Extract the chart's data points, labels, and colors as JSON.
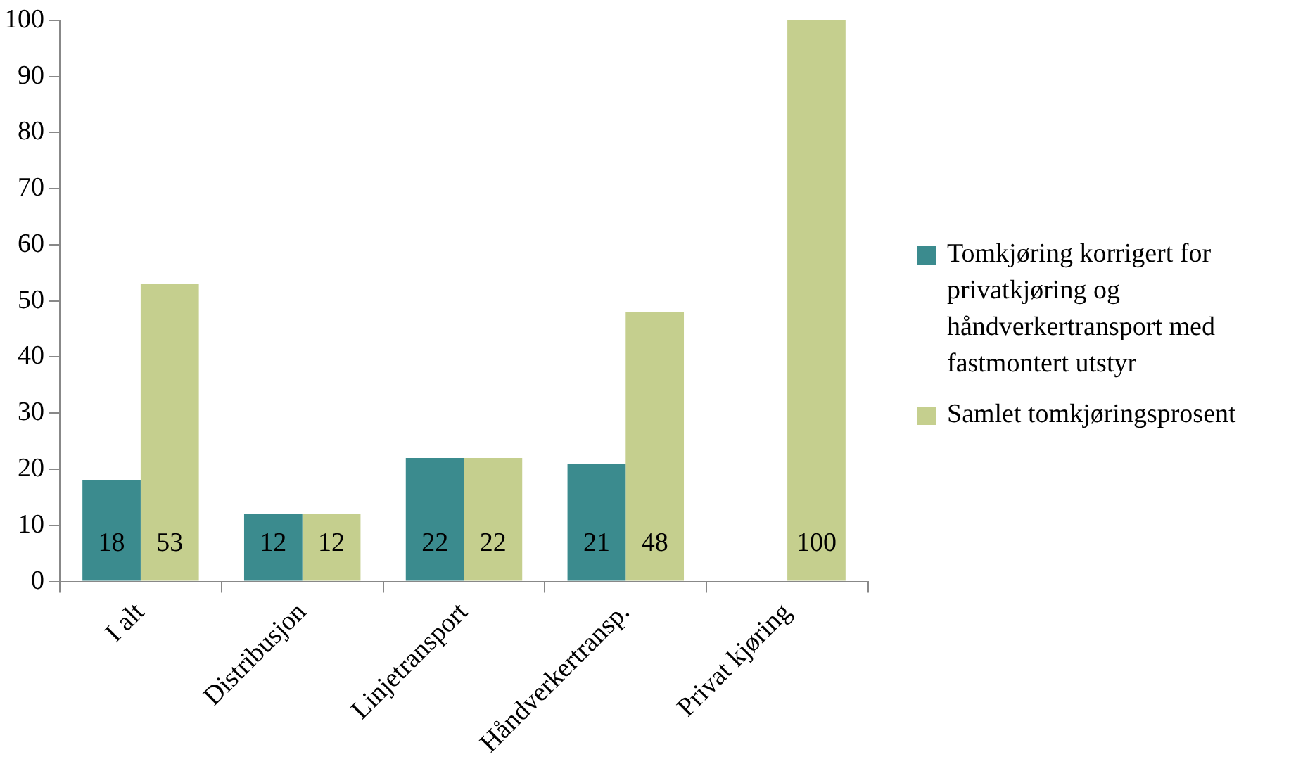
{
  "chart_data": {
    "type": "bar",
    "categories": [
      "I alt",
      "Distribusjon",
      "Linjetransport",
      "Håndverkertransp.",
      "Privat kjøring"
    ],
    "series": [
      {
        "name": "Tomkjøring korrigert for privatkjøring og håndverkertransport med fastmontert utstyr",
        "color": "#3b8b8e",
        "values": [
          18,
          12,
          22,
          21,
          null
        ]
      },
      {
        "name": "Samlet tomkjøringsprosent",
        "color": "#c5cf8e",
        "values": [
          53,
          12,
          22,
          48,
          100
        ]
      }
    ],
    "ylim": [
      0,
      100
    ],
    "yticks": [
      0,
      10,
      20,
      30,
      40,
      50,
      60,
      70,
      80,
      90,
      100
    ],
    "grid": false,
    "legend": "right",
    "data_labels": true
  }
}
